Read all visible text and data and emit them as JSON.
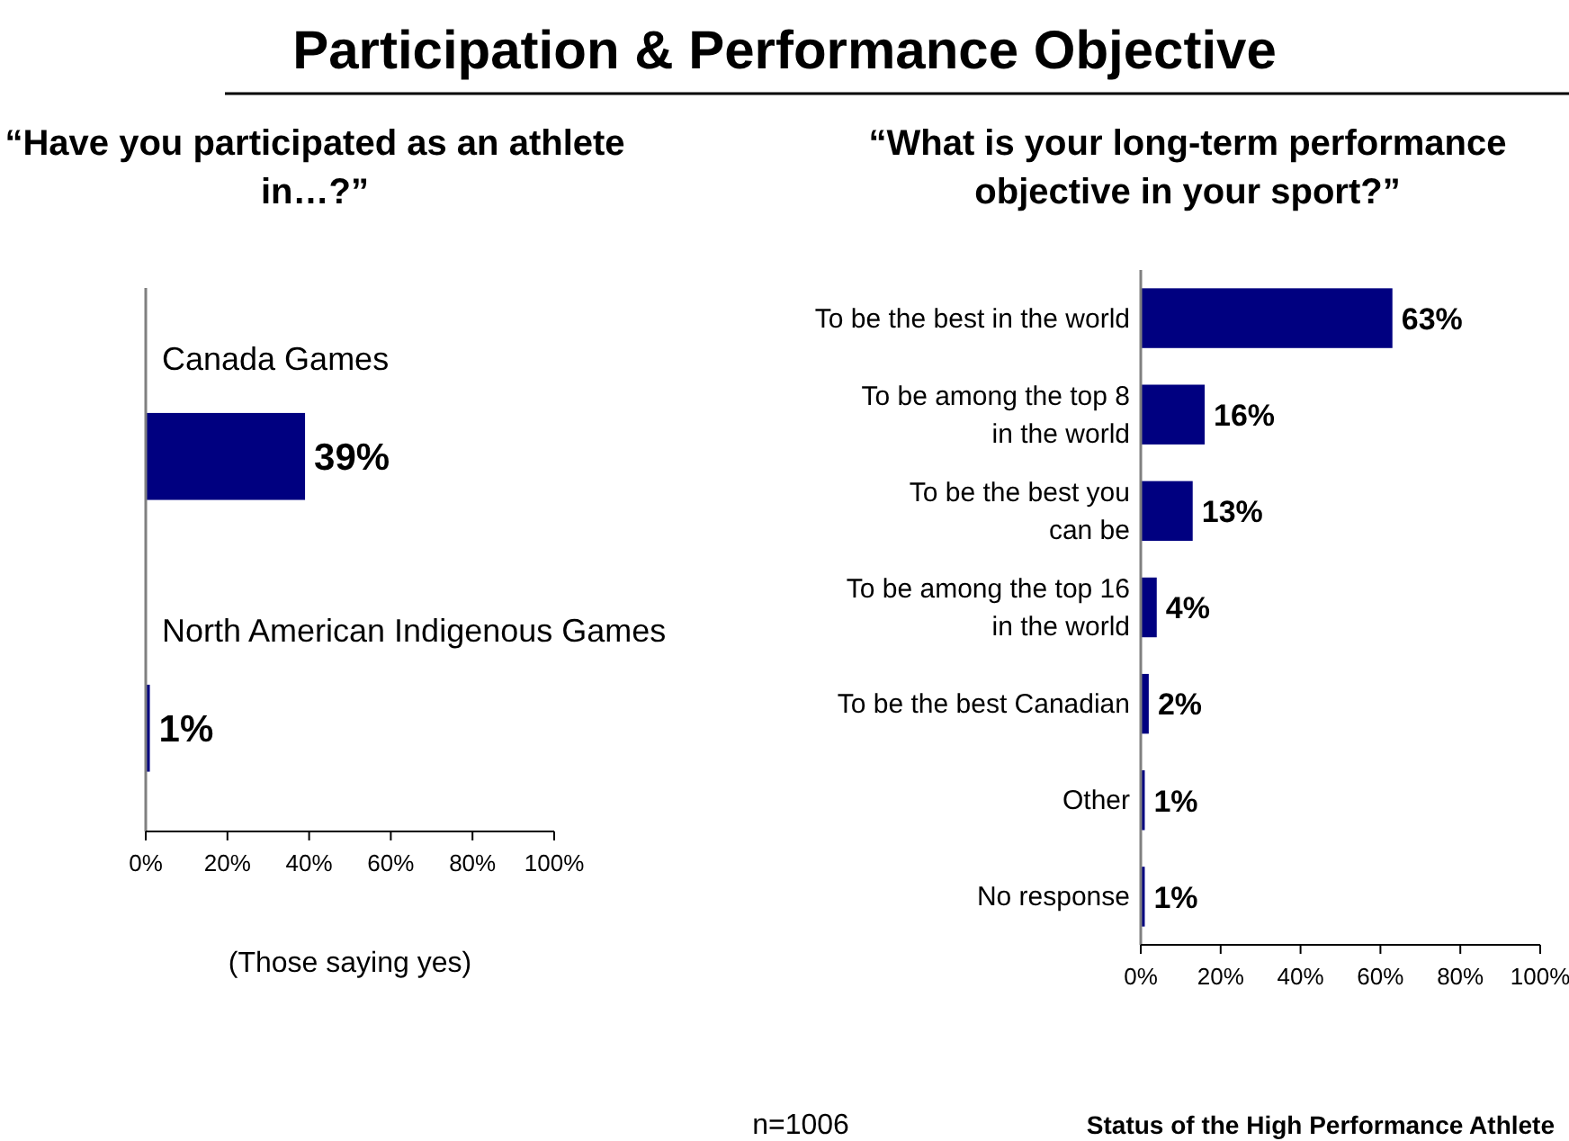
{
  "chart_data": [
    {
      "type": "bar",
      "orientation": "horizontal",
      "title": "Participation & Performance Objective",
      "subtitle": "“Have you participated as an athlete in…?”",
      "xlabel": "(Those saying yes)",
      "categories": [
        "Canada Games",
        "North American Indigenous Games"
      ],
      "values": [
        39,
        1
      ],
      "value_labels": [
        "39%",
        "1%"
      ],
      "color": "#000080",
      "xlim": [
        0,
        100
      ],
      "xticks": [
        {
          "value": 0,
          "label": "0%"
        },
        {
          "value": 20,
          "label": "20%"
        },
        {
          "value": 40,
          "label": "40%"
        },
        {
          "value": 60,
          "label": "60%"
        },
        {
          "value": 80,
          "label": "80%"
        },
        {
          "value": 100,
          "label": "100%"
        }
      ],
      "grid": false
    },
    {
      "type": "bar",
      "orientation": "horizontal",
      "title": "“What is your long-term performance objective in your sport?”",
      "categories": [
        "To be the best in the world",
        "To be among the top 8\nin the world",
        "To be the best you\ncan be",
        "To be among the top 16\nin the world",
        "To be the best Canadian",
        "Other",
        "No response"
      ],
      "values": [
        63,
        16,
        13,
        4,
        2,
        1,
        1
      ],
      "value_labels": [
        "63%",
        "16%",
        "13%",
        "4%",
        "2%",
        "1%",
        "1%"
      ],
      "color": "#000080",
      "xlim": [
        0,
        100
      ],
      "xticks": [
        {
          "value": 0,
          "label": "0%"
        },
        {
          "value": 20,
          "label": "20%"
        },
        {
          "value": 40,
          "label": "40%"
        },
        {
          "value": 60,
          "label": "60%"
        },
        {
          "value": 80,
          "label": "80%"
        },
        {
          "value": 100,
          "label": "100%"
        }
      ],
      "grid": false,
      "annotations": [
        "n=1006",
        "Status of the High Performance Athlete"
      ]
    }
  ]
}
